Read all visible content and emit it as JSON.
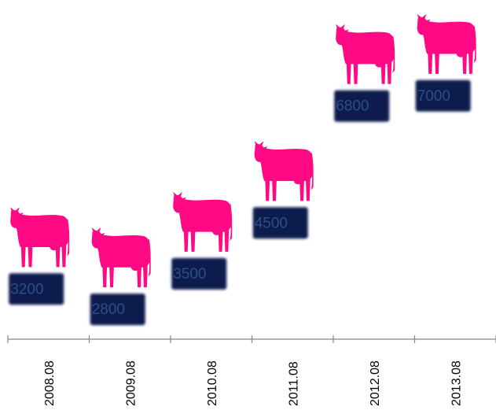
{
  "chart_data": {
    "type": "bar",
    "categories": [
      "2008.08",
      "2009.08",
      "2010.08",
      "2011.08",
      "2012.08",
      "2013.08"
    ],
    "values": [
      3200,
      2800,
      3500,
      4500,
      6800,
      7000
    ],
    "data_labels": [
      "3200",
      "2800",
      "3500",
      "4500",
      "6800",
      "7000"
    ],
    "title": "",
    "xlabel": "",
    "ylabel": "",
    "grid": false,
    "legend": "none",
    "marker_icon": "cow-icon",
    "colors": {
      "marker": "#ff0a84",
      "label_box": "#0c1f4e",
      "label_text": "#2d4f86",
      "axis": "#888888"
    }
  }
}
